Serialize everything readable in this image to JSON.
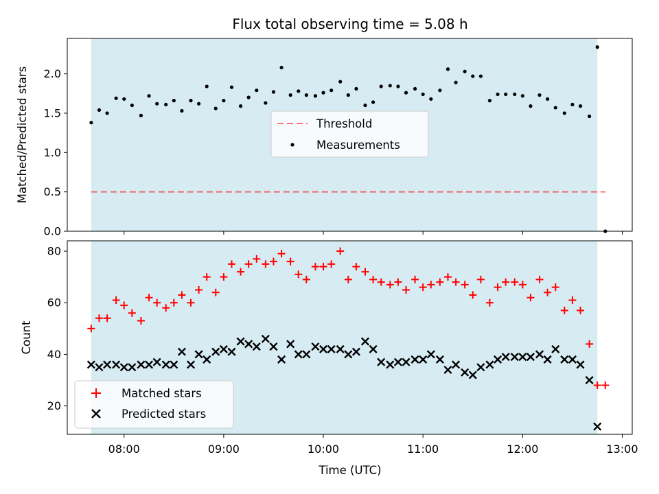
{
  "title": "Flux total observing time = 5.08 h",
  "colors": {
    "band": "#add8e6",
    "threshold": "#ff0000",
    "matched": "#ff0000",
    "predicted": "#000000",
    "measurement": "#000000"
  },
  "chart_data": [
    {
      "type": "scatter",
      "panel": "top",
      "ylabel": "Matched/Predicted stars",
      "xlim": [
        7.43,
        13.1
      ],
      "ylim": [
        0,
        2.45
      ],
      "yticks": [
        0.0,
        0.5,
        1.0,
        1.5,
        2.0
      ],
      "ytick_labels": [
        "0.0",
        "0.5",
        "1.0",
        "1.5",
        "2.0"
      ],
      "shaded_span": [
        7.67,
        12.75
      ],
      "legend": {
        "placement": "center",
        "threshold_label": "Threshold",
        "measurement_label": "Measurements"
      },
      "threshold": {
        "value": 0.5,
        "x_range": [
          7.67,
          12.83
        ]
      },
      "series": [
        {
          "name": "Measurements",
          "marker": "dot",
          "points": [
            [
              7.67,
              1.38
            ],
            [
              7.75,
              1.54
            ],
            [
              7.83,
              1.5
            ],
            [
              7.92,
              1.69
            ],
            [
              8.0,
              1.68
            ],
            [
              8.08,
              1.6
            ],
            [
              8.17,
              1.47
            ],
            [
              8.25,
              1.72
            ],
            [
              8.33,
              1.62
            ],
            [
              8.42,
              1.61
            ],
            [
              8.5,
              1.66
            ],
            [
              8.58,
              1.53
            ],
            [
              8.67,
              1.66
            ],
            [
              8.75,
              1.62
            ],
            [
              8.83,
              1.84
            ],
            [
              8.92,
              1.56
            ],
            [
              9.0,
              1.66
            ],
            [
              9.08,
              1.83
            ],
            [
              9.17,
              1.59
            ],
            [
              9.25,
              1.7
            ],
            [
              9.33,
              1.79
            ],
            [
              9.42,
              1.63
            ],
            [
              9.5,
              1.77
            ],
            [
              9.58,
              2.08
            ],
            [
              9.67,
              1.73
            ],
            [
              9.75,
              1.78
            ],
            [
              9.83,
              1.73
            ],
            [
              9.92,
              1.72
            ],
            [
              10.0,
              1.76
            ],
            [
              10.08,
              1.79
            ],
            [
              10.17,
              1.9
            ],
            [
              10.25,
              1.73
            ],
            [
              10.33,
              1.81
            ],
            [
              10.42,
              1.6
            ],
            [
              10.5,
              1.64
            ],
            [
              10.58,
              1.84
            ],
            [
              10.67,
              1.85
            ],
            [
              10.75,
              1.84
            ],
            [
              10.83,
              1.76
            ],
            [
              10.92,
              1.81
            ],
            [
              11.0,
              1.74
            ],
            [
              11.08,
              1.68
            ],
            [
              11.17,
              1.79
            ],
            [
              11.25,
              2.06
            ],
            [
              11.33,
              1.89
            ],
            [
              11.42,
              2.03
            ],
            [
              11.5,
              1.97
            ],
            [
              11.58,
              1.97
            ],
            [
              11.67,
              1.66
            ],
            [
              11.75,
              1.74
            ],
            [
              11.83,
              1.74
            ],
            [
              11.92,
              1.74
            ],
            [
              12.0,
              1.72
            ],
            [
              12.08,
              1.59
            ],
            [
              12.17,
              1.73
            ],
            [
              12.25,
              1.68
            ],
            [
              12.33,
              1.57
            ],
            [
              12.42,
              1.5
            ],
            [
              12.5,
              1.61
            ],
            [
              12.58,
              1.59
            ],
            [
              12.67,
              1.46
            ],
            [
              12.75,
              2.34
            ],
            [
              12.83,
              0.0
            ]
          ]
        }
      ]
    },
    {
      "type": "scatter",
      "panel": "bottom",
      "xlabel": "Time (UTC)",
      "ylabel": "Count",
      "xlim": [
        7.43,
        13.1
      ],
      "ylim": [
        9,
        84
      ],
      "yticks": [
        20,
        40,
        60,
        80
      ],
      "ytick_labels": [
        "20",
        "40",
        "60",
        "80"
      ],
      "xticks": [
        8,
        9,
        10,
        11,
        12,
        13
      ],
      "xtick_labels": [
        "08:00",
        "09:00",
        "10:00",
        "11:00",
        "12:00",
        "13:00"
      ],
      "shaded_span": [
        7.67,
        12.75
      ],
      "legend": {
        "placement": "lower-left"
      },
      "series": [
        {
          "name": "Matched stars",
          "marker": "plus",
          "points": [
            [
              7.67,
              50
            ],
            [
              7.75,
              54
            ],
            [
              7.83,
              54
            ],
            [
              7.92,
              61
            ],
            [
              8.0,
              59
            ],
            [
              8.08,
              56
            ],
            [
              8.17,
              53
            ],
            [
              8.25,
              62
            ],
            [
              8.33,
              60
            ],
            [
              8.42,
              58
            ],
            [
              8.5,
              60
            ],
            [
              8.58,
              63
            ],
            [
              8.67,
              60
            ],
            [
              8.75,
              65
            ],
            [
              8.83,
              70
            ],
            [
              8.92,
              64
            ],
            [
              9.0,
              70
            ],
            [
              9.08,
              75
            ],
            [
              9.17,
              72
            ],
            [
              9.25,
              75
            ],
            [
              9.33,
              77
            ],
            [
              9.42,
              75
            ],
            [
              9.5,
              76
            ],
            [
              9.58,
              79
            ],
            [
              9.67,
              76
            ],
            [
              9.75,
              71
            ],
            [
              9.83,
              69
            ],
            [
              9.92,
              74
            ],
            [
              10.0,
              74
            ],
            [
              10.08,
              75
            ],
            [
              10.17,
              80
            ],
            [
              10.25,
              69
            ],
            [
              10.33,
              74
            ],
            [
              10.42,
              72
            ],
            [
              10.5,
              69
            ],
            [
              10.58,
              68
            ],
            [
              10.67,
              67
            ],
            [
              10.75,
              68
            ],
            [
              10.83,
              65
            ],
            [
              10.92,
              69
            ],
            [
              11.0,
              66
            ],
            [
              11.08,
              67
            ],
            [
              11.17,
              68
            ],
            [
              11.25,
              70
            ],
            [
              11.33,
              68
            ],
            [
              11.42,
              67
            ],
            [
              11.5,
              63
            ],
            [
              11.58,
              69
            ],
            [
              11.67,
              60
            ],
            [
              11.75,
              66
            ],
            [
              11.83,
              68
            ],
            [
              11.92,
              68
            ],
            [
              12.0,
              67
            ],
            [
              12.08,
              62
            ],
            [
              12.17,
              69
            ],
            [
              12.25,
              64
            ],
            [
              12.33,
              66
            ],
            [
              12.42,
              57
            ],
            [
              12.5,
              61
            ],
            [
              12.58,
              57
            ],
            [
              12.67,
              44
            ],
            [
              12.75,
              28
            ],
            [
              12.83,
              28
            ]
          ]
        },
        {
          "name": "Predicted stars",
          "marker": "x",
          "points": [
            [
              7.67,
              36
            ],
            [
              7.75,
              35
            ],
            [
              7.83,
              36
            ],
            [
              7.92,
              36
            ],
            [
              8.0,
              35
            ],
            [
              8.08,
              35
            ],
            [
              8.17,
              36
            ],
            [
              8.25,
              36
            ],
            [
              8.33,
              37
            ],
            [
              8.42,
              36
            ],
            [
              8.5,
              36
            ],
            [
              8.58,
              41
            ],
            [
              8.67,
              36
            ],
            [
              8.75,
              40
            ],
            [
              8.83,
              38
            ],
            [
              8.92,
              41
            ],
            [
              9.0,
              42
            ],
            [
              9.08,
              41
            ],
            [
              9.17,
              45
            ],
            [
              9.25,
              44
            ],
            [
              9.33,
              43
            ],
            [
              9.42,
              46
            ],
            [
              9.5,
              43
            ],
            [
              9.58,
              38
            ],
            [
              9.67,
              44
            ],
            [
              9.75,
              40
            ],
            [
              9.83,
              40
            ],
            [
              9.92,
              43
            ],
            [
              10.0,
              42
            ],
            [
              10.08,
              42
            ],
            [
              10.17,
              42
            ],
            [
              10.25,
              40
            ],
            [
              10.33,
              41
            ],
            [
              10.42,
              45
            ],
            [
              10.5,
              42
            ],
            [
              10.58,
              37
            ],
            [
              10.67,
              36
            ],
            [
              10.75,
              37
            ],
            [
              10.83,
              37
            ],
            [
              10.92,
              38
            ],
            [
              11.0,
              38
            ],
            [
              11.08,
              40
            ],
            [
              11.17,
              38
            ],
            [
              11.25,
              34
            ],
            [
              11.33,
              36
            ],
            [
              11.42,
              33
            ],
            [
              11.5,
              32
            ],
            [
              11.58,
              35
            ],
            [
              11.67,
              36
            ],
            [
              11.75,
              38
            ],
            [
              11.83,
              39
            ],
            [
              11.92,
              39
            ],
            [
              12.0,
              39
            ],
            [
              12.08,
              39
            ],
            [
              12.17,
              40
            ],
            [
              12.25,
              38
            ],
            [
              12.33,
              42
            ],
            [
              12.42,
              38
            ],
            [
              12.5,
              38
            ],
            [
              12.58,
              36
            ],
            [
              12.67,
              30
            ],
            [
              12.75,
              12
            ]
          ]
        }
      ]
    }
  ]
}
